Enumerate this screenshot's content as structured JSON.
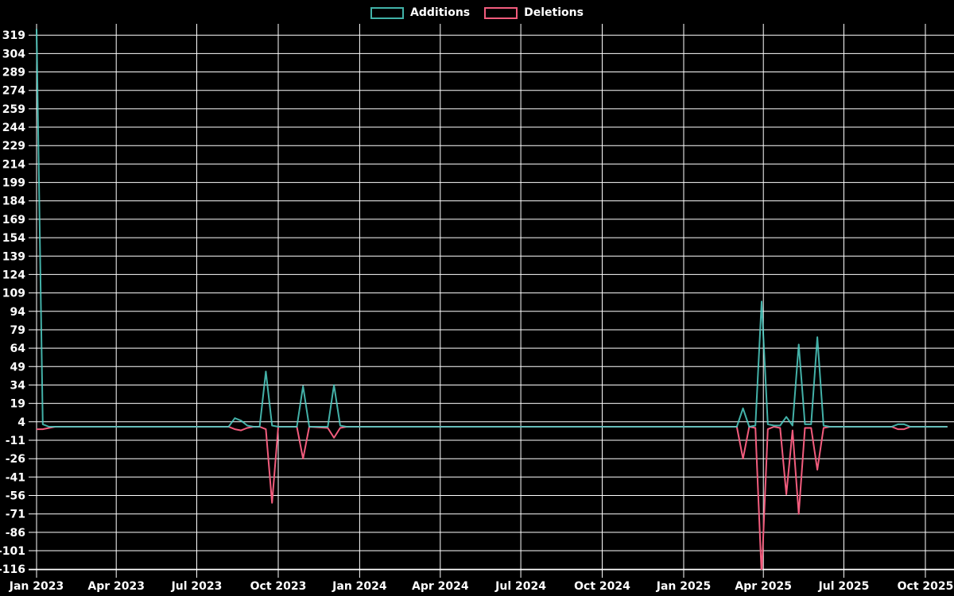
{
  "chart_data": {
    "type": "line",
    "title": "",
    "background": "#000000",
    "grid": true,
    "legend_position": "top-center",
    "legend": [
      {
        "label": "Additions",
        "color": "#41b2a8"
      },
      {
        "label": "Deletions",
        "color": "#f25c7d"
      }
    ],
    "x_axis": {
      "type": "time",
      "ticks": [
        {
          "label": "Jan 2023",
          "date": "2023-01-01"
        },
        {
          "label": "Apr 2023",
          "date": "2023-04-01"
        },
        {
          "label": "Jul 2023",
          "date": "2023-07-01"
        },
        {
          "label": "Oct 2023",
          "date": "2023-10-01"
        },
        {
          "label": "Jan 2024",
          "date": "2024-01-01"
        },
        {
          "label": "Apr 2024",
          "date": "2024-04-01"
        },
        {
          "label": "Jul 2024",
          "date": "2024-07-01"
        },
        {
          "label": "Oct 2024",
          "date": "2024-10-01"
        },
        {
          "label": "Jan 2025",
          "date": "2025-01-01"
        },
        {
          "label": "Apr 2025",
          "date": "2025-04-01"
        },
        {
          "label": "Jul 2025",
          "date": "2025-07-01"
        },
        {
          "label": "Oct 2025",
          "date": "2025-10-01"
        }
      ]
    },
    "y_axis": {
      "min": -116,
      "max": 319,
      "tick_step": 15,
      "ticks": [
        319,
        304,
        289,
        274,
        259,
        244,
        229,
        214,
        199,
        184,
        169,
        154,
        139,
        124,
        109,
        94,
        79,
        64,
        49,
        34,
        19,
        4,
        -11,
        -26,
        -41,
        -56,
        -71,
        -86,
        -101,
        -116
      ]
    },
    "series": [
      {
        "name": "Additions",
        "color": "#41b2a8",
        "points": [
          [
            "2023-01-01",
            324
          ],
          [
            "2023-01-08",
            2
          ],
          [
            "2023-01-15",
            0
          ],
          [
            "2023-08-06",
            0
          ],
          [
            "2023-08-13",
            7
          ],
          [
            "2023-08-20",
            5
          ],
          [
            "2023-08-27",
            1
          ],
          [
            "2023-09-03",
            0
          ],
          [
            "2023-09-10",
            0
          ],
          [
            "2023-09-17",
            45
          ],
          [
            "2023-09-24",
            1
          ],
          [
            "2023-10-01",
            0
          ],
          [
            "2023-10-22",
            0
          ],
          [
            "2023-10-29",
            33
          ],
          [
            "2023-11-05",
            0
          ],
          [
            "2023-11-26",
            0
          ],
          [
            "2023-12-03",
            34
          ],
          [
            "2023-12-10",
            1
          ],
          [
            "2023-12-17",
            0
          ],
          [
            "2025-03-02",
            0
          ],
          [
            "2025-03-09",
            15
          ],
          [
            "2025-03-16",
            0
          ],
          [
            "2025-03-23",
            1
          ],
          [
            "2025-03-30",
            102
          ],
          [
            "2025-04-06",
            2
          ],
          [
            "2025-04-13",
            1
          ],
          [
            "2025-04-20",
            1
          ],
          [
            "2025-04-27",
            8
          ],
          [
            "2025-05-04",
            1
          ],
          [
            "2025-05-11",
            67
          ],
          [
            "2025-05-18",
            2
          ],
          [
            "2025-05-25",
            2
          ],
          [
            "2025-06-01",
            73
          ],
          [
            "2025-06-08",
            1
          ],
          [
            "2025-06-15",
            0
          ],
          [
            "2025-08-24",
            0
          ],
          [
            "2025-08-31",
            2
          ],
          [
            "2025-09-07",
            2
          ],
          [
            "2025-09-14",
            0
          ],
          [
            "2025-10-26",
            0
          ]
        ]
      },
      {
        "name": "Deletions",
        "color": "#f25c7d",
        "points": [
          [
            "2023-01-01",
            -2
          ],
          [
            "2023-01-08",
            -2
          ],
          [
            "2023-01-15",
            -1
          ],
          [
            "2023-01-22",
            0
          ],
          [
            "2023-08-06",
            0
          ],
          [
            "2023-08-13",
            -2
          ],
          [
            "2023-08-20",
            -3
          ],
          [
            "2023-08-27",
            -1
          ],
          [
            "2023-09-03",
            0
          ],
          [
            "2023-09-10",
            0
          ],
          [
            "2023-09-17",
            -2
          ],
          [
            "2023-09-24",
            -62
          ],
          [
            "2023-10-01",
            0
          ],
          [
            "2023-10-22",
            0
          ],
          [
            "2023-10-29",
            -26
          ],
          [
            "2023-11-05",
            0
          ],
          [
            "2023-11-26",
            -1
          ],
          [
            "2023-12-03",
            -9
          ],
          [
            "2023-12-10",
            -1
          ],
          [
            "2023-12-17",
            0
          ],
          [
            "2025-03-02",
            0
          ],
          [
            "2025-03-09",
            -26
          ],
          [
            "2025-03-16",
            0
          ],
          [
            "2025-03-23",
            -1
          ],
          [
            "2025-03-30",
            -121
          ],
          [
            "2025-04-06",
            -2
          ],
          [
            "2025-04-13",
            0
          ],
          [
            "2025-04-20",
            -1
          ],
          [
            "2025-04-27",
            -55
          ],
          [
            "2025-05-04",
            -3
          ],
          [
            "2025-05-11",
            -71
          ],
          [
            "2025-05-18",
            -1
          ],
          [
            "2025-05-25",
            -1
          ],
          [
            "2025-06-01",
            -35
          ],
          [
            "2025-06-08",
            -1
          ],
          [
            "2025-06-15",
            0
          ],
          [
            "2025-08-24",
            0
          ],
          [
            "2025-08-31",
            -2
          ],
          [
            "2025-09-07",
            -2
          ],
          [
            "2025-09-14",
            0
          ],
          [
            "2025-10-26",
            0
          ]
        ]
      }
    ]
  }
}
